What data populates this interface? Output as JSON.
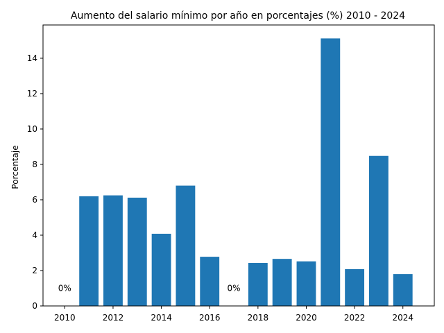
{
  "chart_data": {
    "type": "bar",
    "title": "Aumento del salario mínimo por año en porcentajes (%) 2010 - 2024",
    "xlabel": "",
    "ylabel": "Porcentaje",
    "x": [
      2010,
      2011,
      2012,
      2013,
      2014,
      2015,
      2016,
      2017,
      2018,
      2019,
      2020,
      2021,
      2022,
      2023,
      2024
    ],
    "values": [
      0,
      6.2,
      6.25,
      6.12,
      4.08,
      6.8,
      2.78,
      0,
      2.43,
      2.66,
      2.52,
      15.12,
      2.08,
      8.48,
      1.8
    ],
    "xlim": [
      2009.1,
      2025.3
    ],
    "ylim": [
      0,
      15.88
    ],
    "xticks": [
      "2010",
      "2012",
      "2014",
      "2016",
      "2018",
      "2020",
      "2022",
      "2024"
    ],
    "yticks": [
      "0",
      "2",
      "4",
      "6",
      "8",
      "10",
      "12",
      "14"
    ],
    "annotations": [
      {
        "x": 2010,
        "y": 1.0,
        "text": "0%"
      },
      {
        "x": 2017,
        "y": 1.0,
        "text": "0%"
      }
    ],
    "bar_color": "#1f77b4",
    "grid": false,
    "legend": "none"
  }
}
